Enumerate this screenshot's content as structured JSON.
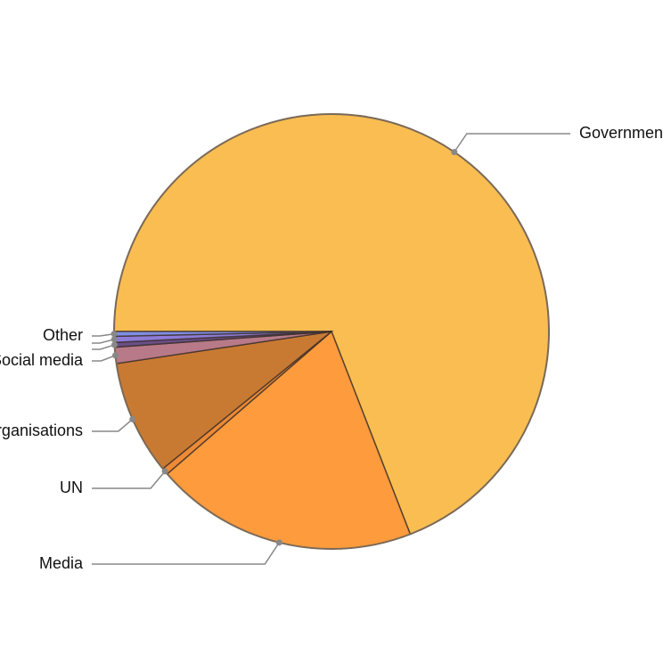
{
  "chart_data": {
    "type": "pie",
    "categories": [
      "Government",
      "Media",
      "UN",
      "Organisations",
      "Social media",
      null,
      null,
      "Other"
    ],
    "values": [
      69,
      19.5,
      0.5,
      8.5,
      1.2,
      0.35,
      0.45,
      0.35
    ],
    "colors": [
      "#f9bd51",
      "#fd9b3d",
      "#ee8a35",
      "#c97a32",
      "#b87a88",
      "#6a4e86",
      "#8e7bd8",
      "#7f8ee2"
    ]
  }
}
